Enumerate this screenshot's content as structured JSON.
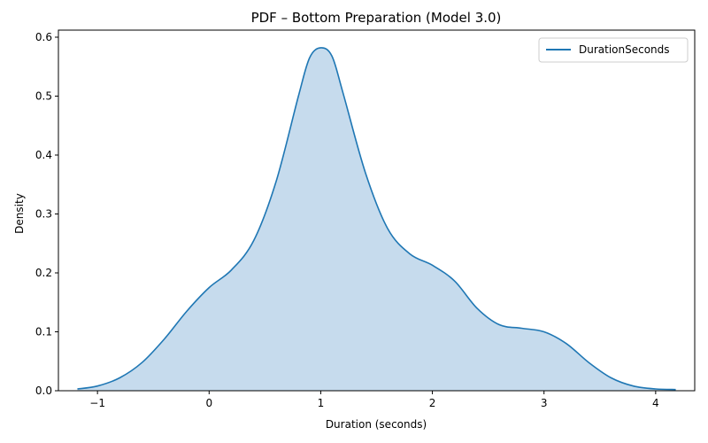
{
  "chart_data": {
    "type": "area",
    "title": "PDF – Bottom Preparation (Model 3.0)",
    "xlabel": "Duration (seconds)",
    "ylabel": "Density",
    "xlim": [
      -1.35,
      4.35
    ],
    "ylim": [
      0.0,
      0.612
    ],
    "x_ticks": [
      -1,
      0,
      1,
      2,
      3,
      4
    ],
    "x_tick_labels": [
      "−1",
      "0",
      "1",
      "2",
      "3",
      "4"
    ],
    "y_ticks": [
      0.0,
      0.1,
      0.2,
      0.3,
      0.4,
      0.5,
      0.6
    ],
    "y_tick_labels": [
      "0.0",
      "0.1",
      "0.2",
      "0.3",
      "0.4",
      "0.5",
      "0.6"
    ],
    "grid": false,
    "legend_position": "top-right",
    "colors": {
      "line": "#1f77b4",
      "fill": "#c6dbed"
    },
    "series": [
      {
        "name": "DurationSeconds",
        "x": [
          -1.18,
          -1.0,
          -0.8,
          -0.6,
          -0.4,
          -0.2,
          0.0,
          0.2,
          0.4,
          0.6,
          0.8,
          0.9,
          1.0,
          1.1,
          1.2,
          1.4,
          1.6,
          1.8,
          2.0,
          2.2,
          2.4,
          2.6,
          2.8,
          3.0,
          3.2,
          3.4,
          3.6,
          3.8,
          4.0,
          4.18
        ],
        "y": [
          0.003,
          0.008,
          0.022,
          0.048,
          0.088,
          0.135,
          0.175,
          0.205,
          0.255,
          0.355,
          0.5,
          0.565,
          0.582,
          0.568,
          0.505,
          0.37,
          0.275,
          0.232,
          0.213,
          0.186,
          0.14,
          0.112,
          0.106,
          0.1,
          0.08,
          0.048,
          0.022,
          0.008,
          0.003,
          0.002
        ]
      }
    ]
  }
}
